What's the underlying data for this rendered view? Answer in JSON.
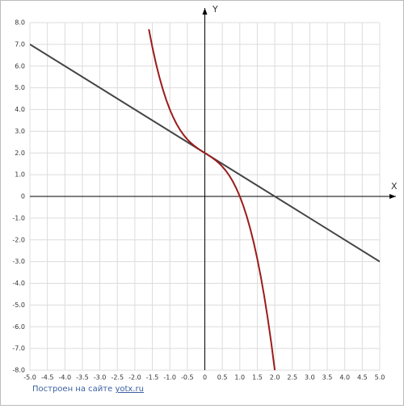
{
  "chart_data": {
    "type": "line",
    "x_axis_label": "X",
    "y_axis_label": "Y",
    "footer_text": "Построен на сайте",
    "footer_link": "yotx.ru",
    "grid": true,
    "xlim": [
      -5,
      5
    ],
    "ylim": [
      -8,
      8
    ],
    "xticks": [
      {
        "value": -5,
        "label": "-5.0"
      },
      -4.5,
      {
        "value": -4,
        "label": "-4.0"
      },
      -3.5,
      {
        "value": -3,
        "label": "-3.0"
      },
      -2.5,
      {
        "value": -2,
        "label": "-2.0"
      },
      -1.5,
      {
        "value": -1,
        "label": "-1.0"
      },
      -0.5,
      0,
      0.5,
      {
        "value": 1,
        "label": "1.0"
      },
      1.5,
      {
        "value": 2,
        "label": "2.0"
      },
      2.5,
      {
        "value": 3,
        "label": "3.0"
      },
      3.5,
      {
        "value": 4,
        "label": "4.0"
      },
      4.5,
      {
        "value": 5,
        "label": "5.0"
      }
    ],
    "yticks": [
      {
        "value": -8,
        "label": "-8.0"
      },
      {
        "value": -7,
        "label": "-7.0"
      },
      {
        "value": -6,
        "label": "-6.0"
      },
      {
        "value": -5,
        "label": "-5.0"
      },
      {
        "value": -4,
        "label": "-4.0"
      },
      {
        "value": -3,
        "label": "-3.0"
      },
      {
        "value": -2,
        "label": "-2.0"
      },
      {
        "value": -1,
        "label": "-1.0"
      },
      0,
      {
        "value": 1,
        "label": "1.0"
      },
      {
        "value": 2,
        "label": "2.0"
      },
      {
        "value": 3,
        "label": "3.0"
      },
      {
        "value": 4,
        "label": "4.0"
      },
      {
        "value": 5,
        "label": "5.0"
      },
      {
        "value": 6,
        "label": "6.0"
      },
      {
        "value": 7,
        "label": "7.0"
      },
      {
        "value": 8,
        "label": "8.0"
      }
    ],
    "series": [
      {
        "color": "#444444",
        "x": [
          -5,
          5
        ],
        "values": [
          7,
          -3
        ]
      },
      {
        "color": "#9b1c1c",
        "x": [
          -1.6,
          -1.5,
          -1.4,
          -1.3,
          -1.2,
          -1.1,
          -1.0,
          -0.9,
          -0.8,
          -0.7,
          -0.6,
          -0.5,
          -0.4,
          -0.3,
          -0.2,
          -0.1,
          0,
          0.1,
          0.2,
          0.3,
          0.4,
          0.5,
          0.6,
          0.7,
          0.8,
          0.9,
          1.0,
          1.1,
          1.2,
          1.3,
          1.4,
          1.5,
          1.6,
          1.7,
          1.8,
          1.9,
          2.0
        ],
        "values": [
          7.696,
          6.875,
          6.144,
          5.497,
          4.928,
          4.431,
          4,
          3.629,
          3.312,
          3.043,
          2.816,
          2.625,
          2.464,
          2.327,
          2.208,
          2.101,
          2,
          1.899,
          1.792,
          1.673,
          1.536,
          1.375,
          1.184,
          0.957,
          0.688,
          0.371,
          0,
          -0.431,
          -0.928,
          -1.497,
          -2.144,
          -2.875,
          -3.696,
          -4.613,
          -5.632,
          -6.759,
          -8
        ]
      }
    ]
  }
}
